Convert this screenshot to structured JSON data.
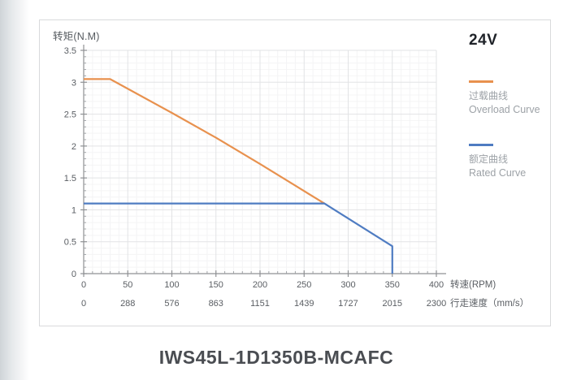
{
  "page": {
    "model_title": "IWS45L-1D1350B-MCAFC",
    "voltage_badge": "24V"
  },
  "chart_data": {
    "type": "line",
    "title": "IWS45L-1D1350B-MCAFC",
    "legend_position": "right",
    "grid": true,
    "y_axis": {
      "label": "转矩(N.M)",
      "min": 0,
      "max": 3.5,
      "major_step": 0.5,
      "minor_step": 0.1,
      "ticks": [
        3.5,
        3,
        2.5,
        2,
        1.5,
        1,
        0.5,
        0
      ]
    },
    "x_axis": {
      "label": "转速(RPM)",
      "min": 0,
      "max": 400,
      "major_step": 50,
      "minor_step": 10,
      "ticks": [
        0,
        50,
        100,
        150,
        200,
        250,
        300,
        350,
        400
      ]
    },
    "x_axis2": {
      "label": "行走速度（mm/s）",
      "ticks": [
        0,
        288,
        576,
        863,
        1151,
        1439,
        1727,
        2015,
        2300
      ]
    },
    "series": [
      {
        "name_zh": "过载曲线",
        "name_en": "Overload Curve",
        "color": "#E8914E",
        "points": [
          [
            0,
            3.05
          ],
          [
            30,
            3.05
          ],
          [
            100,
            2.52
          ],
          [
            150,
            2.13
          ],
          [
            200,
            1.72
          ],
          [
            240,
            1.38
          ],
          [
            273,
            1.1
          ]
        ]
      },
      {
        "name_zh": "额定曲线",
        "name_en": "Rated Curve",
        "color": "#4F7CC2",
        "points": [
          [
            0,
            1.1
          ],
          [
            273,
            1.1
          ],
          [
            350,
            0.43
          ],
          [
            350,
            0
          ]
        ]
      }
    ],
    "colors": {
      "grid_major": "#e2e3e5",
      "grid_minor": "#f4f4f5",
      "axis": "#8f9194",
      "tick_label": "#5a5e63"
    }
  }
}
